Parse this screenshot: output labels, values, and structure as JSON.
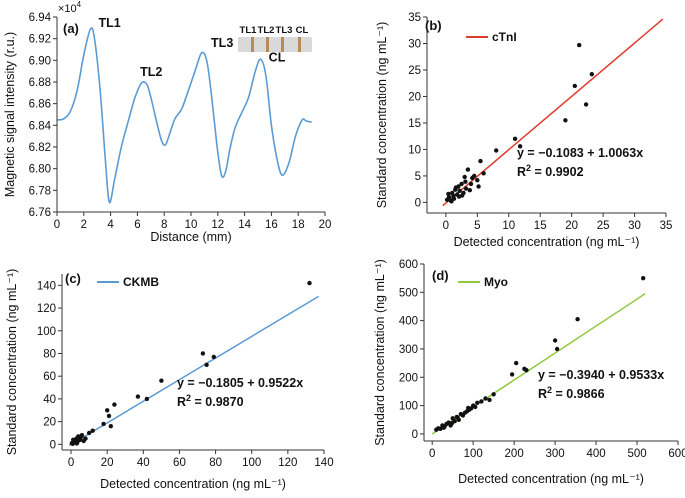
{
  "chart_data": [
    {
      "id": "a",
      "type": "line",
      "panel_label": "(a)",
      "xlabel": "Distance (mm)",
      "ylabel": "Magnetic signal intensity (r.u.)",
      "y_multiplier": "×10",
      "y_multiplier_exp": "4",
      "xlim": [
        0,
        20
      ],
      "ylim": [
        6.76,
        6.94
      ],
      "xticks": [
        0,
        2,
        4,
        6,
        8,
        10,
        12,
        14,
        16,
        18,
        20
      ],
      "yticks": [
        6.76,
        6.78,
        6.8,
        6.82,
        6.84,
        6.86,
        6.88,
        6.9,
        6.92,
        6.94
      ],
      "color": "#5b9bd5",
      "x": [
        0,
        0.5,
        1.0,
        1.5,
        2.0,
        2.5,
        2.8,
        3.2,
        3.6,
        3.9,
        4.3,
        4.8,
        5.3,
        5.8,
        6.3,
        6.7,
        7.0,
        7.4,
        7.8,
        8.1,
        8.4,
        8.8,
        9.3,
        9.8,
        10.3,
        10.8,
        11.2,
        11.6,
        12.0,
        12.3,
        12.6,
        12.9,
        13.3,
        13.8,
        14.3,
        14.8,
        15.2,
        15.6,
        16.0,
        16.4,
        16.8,
        17.3,
        17.8,
        18.3,
        18.6,
        19.0
      ],
      "values": [
        6.845,
        6.846,
        6.853,
        6.872,
        6.905,
        6.929,
        6.92,
        6.875,
        6.81,
        6.769,
        6.79,
        6.82,
        6.843,
        6.865,
        6.879,
        6.878,
        6.866,
        6.845,
        6.826,
        6.822,
        6.832,
        6.846,
        6.855,
        6.872,
        6.89,
        6.907,
        6.898,
        6.86,
        6.815,
        6.793,
        6.798,
        6.818,
        6.838,
        6.852,
        6.866,
        6.89,
        6.901,
        6.885,
        6.84,
        6.81,
        6.794,
        6.805,
        6.83,
        6.845,
        6.844,
        6.843
      ],
      "peak_labels": [
        {
          "text": "TL1",
          "x": 2.5,
          "y": 6.929
        },
        {
          "text": "TL2",
          "x": 6.5,
          "y": 6.879
        },
        {
          "text": "TL3",
          "x": 10.9,
          "y": 6.907
        },
        {
          "text": "CL",
          "x": 15.2,
          "y": 6.901
        }
      ],
      "strip_labels": [
        "TL1",
        "TL2",
        "TL3",
        "CL"
      ]
    },
    {
      "id": "b",
      "type": "scatter",
      "panel_label": "(b)",
      "legend": "cTnI",
      "color": "#e0392b",
      "xlabel": "Detected concentration (ng mL⁻¹)",
      "ylabel": "Standard concentration (ng mL⁻¹)",
      "xlim": [
        -3,
        35
      ],
      "ylim": [
        -2,
        35
      ],
      "xticks": [
        0,
        5,
        10,
        15,
        20,
        25,
        30,
        35
      ],
      "yticks": [
        0,
        5,
        10,
        15,
        20,
        25,
        30,
        35
      ],
      "equation": "y = −0.1083 + 1.0063x",
      "r2_label": "R",
      "r2_value": "2",
      "r2_text": " = 0.9902",
      "slope": 1.0063,
      "intercept": -0.1083,
      "fit_x": [
        -0.5,
        34.5
      ],
      "x": [
        0.2,
        0.5,
        0.8,
        1.0,
        1.2,
        1.5,
        1.8,
        2.0,
        2.2,
        2.5,
        2.8,
        3.0,
        3.2,
        3.5,
        4.0,
        4.5,
        5.0,
        5.5,
        6.0,
        0.9,
        1.6,
        2.6,
        3.8,
        5.2,
        8.0,
        11.0,
        11.8,
        19.0,
        20.5,
        21.2,
        22.3,
        23.2,
        0.4,
        1.3,
        2.1,
        3.1,
        4.2
      ],
      "y": [
        0.5,
        1.0,
        0.3,
        1.8,
        1.2,
        2.4,
        1.5,
        3.0,
        2.2,
        3.5,
        1.8,
        4.8,
        2.6,
        6.2,
        3.5,
        5.0,
        4.2,
        7.8,
        5.5,
        0.2,
        2.8,
        1.3,
        2.3,
        3.0,
        9.8,
        12.0,
        10.6,
        15.5,
        22.0,
        29.7,
        18.5,
        24.2,
        1.6,
        0.7,
        1.1,
        3.9,
        4.6
      ]
    },
    {
      "id": "c",
      "type": "scatter",
      "panel_label": "(c)",
      "legend": "CKMB",
      "color": "#5b9bd5",
      "xlabel": "Detected concentration (ng mL⁻¹)",
      "ylabel": "Standard concentration (ng mL⁻¹)",
      "xlim": [
        -5,
        140
      ],
      "ylim": [
        -5,
        150
      ],
      "xticks": [
        0,
        20,
        40,
        60,
        80,
        100,
        120,
        140
      ],
      "yticks": [
        0,
        20,
        40,
        60,
        80,
        100,
        120,
        140
      ],
      "equation": "y = −0.1805 + 0.9522x",
      "r2_label": "R",
      "r2_value": "2",
      "r2_text": " = 0.9870",
      "slope": 0.9522,
      "intercept": -0.1805,
      "fit_x": [
        -1,
        137
      ],
      "x": [
        0.5,
        1.0,
        1.5,
        2.0,
        2.5,
        3.0,
        3.5,
        4.0,
        5.0,
        6.0,
        7.0,
        8.0,
        10.0,
        12.0,
        18.0,
        20.0,
        21.0,
        22.0,
        24.0,
        37.0,
        42.0,
        50.0,
        73.0,
        75.0,
        79.0,
        132.0,
        1.2,
        3.2,
        5.5
      ],
      "y": [
        1.0,
        0.5,
        2.5,
        3.0,
        1.5,
        5.0,
        2.0,
        7.0,
        4.0,
        8.0,
        3.0,
        5.0,
        10.0,
        12.0,
        18.0,
        30.0,
        25.0,
        16.0,
        35.0,
        42.0,
        40.0,
        56.0,
        80.0,
        70.0,
        77.0,
        142.0,
        4.0,
        0.8,
        6.5
      ]
    },
    {
      "id": "d",
      "type": "scatter",
      "panel_label": "(d)",
      "legend": "Myo",
      "color": "#92c83e",
      "xlabel": "Detected concentration (ng mL⁻¹)",
      "ylabel": "Standard concentration (ng mL⁻¹)",
      "xlim": [
        -20,
        600
      ],
      "ylim": [
        -25,
        600
      ],
      "xticks": [
        0,
        100,
        200,
        300,
        400,
        500,
        600
      ],
      "yticks": [
        0,
        100,
        200,
        300,
        400,
        500,
        600
      ],
      "equation": "y = −0.3940 + 0.9533x",
      "r2_label": "R",
      "r2_value": "2",
      "r2_text": " = 0.9866",
      "slope": 0.9533,
      "intercept": -0.394,
      "fit_x": [
        0,
        520
      ],
      "x": [
        10,
        15,
        20,
        25,
        30,
        35,
        40,
        45,
        50,
        55,
        60,
        65,
        70,
        75,
        80,
        85,
        90,
        95,
        100,
        105,
        110,
        120,
        130,
        140,
        150,
        195,
        205,
        225,
        230,
        300,
        305,
        355,
        515,
        28,
        48,
        62,
        88
      ],
      "y": [
        15,
        20,
        18,
        30,
        25,
        35,
        40,
        30,
        55,
        45,
        60,
        50,
        70,
        65,
        75,
        80,
        85,
        90,
        100,
        95,
        110,
        115,
        125,
        120,
        140,
        210,
        250,
        230,
        225,
        330,
        300,
        405,
        550,
        22,
        38,
        58,
        92
      ]
    }
  ]
}
